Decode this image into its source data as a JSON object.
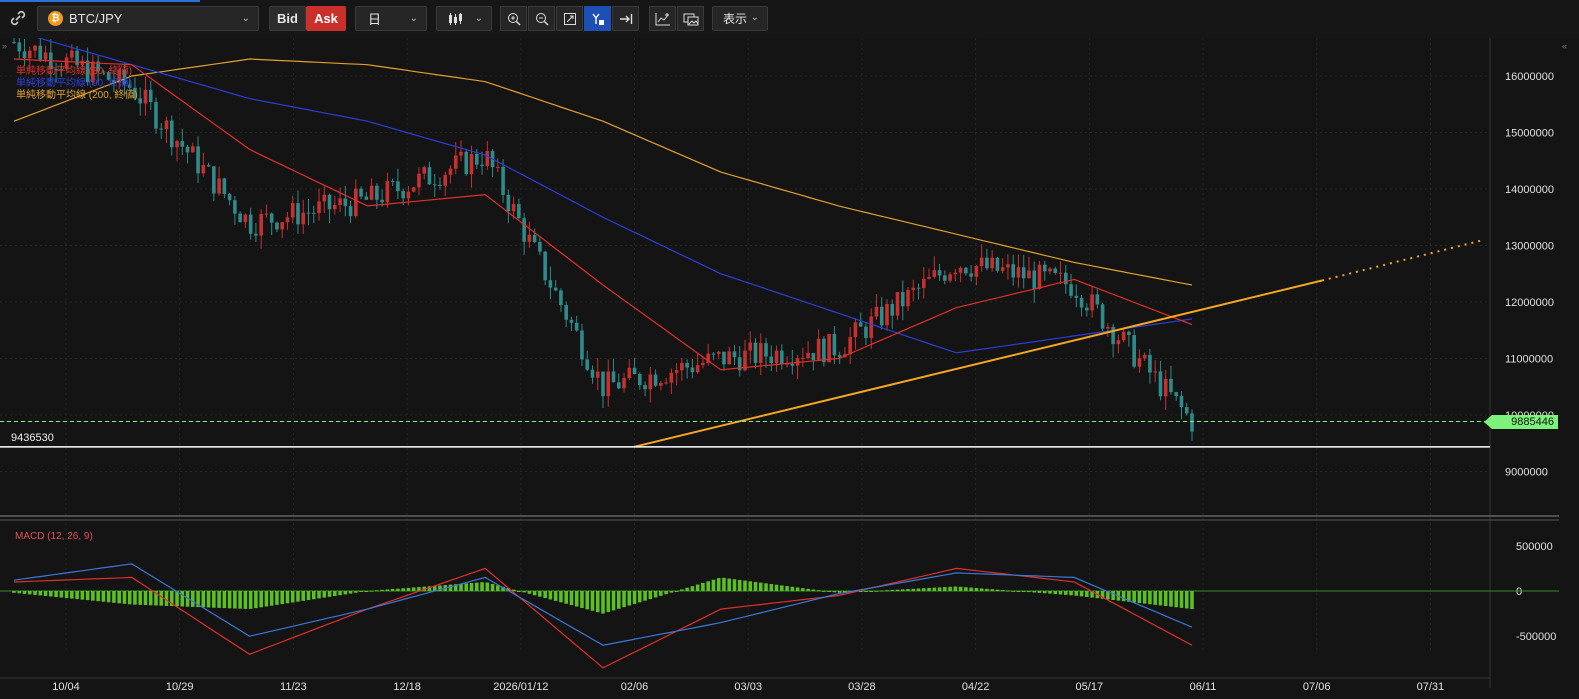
{
  "toolbar": {
    "symbol": "BTC/JPY",
    "coin_glyph": "₿",
    "bid_label": "Bid",
    "ask_label": "Ask",
    "period": "日",
    "display_label": "表示",
    "icons": [
      "link-icon",
      "candlestick-icon",
      "zoom-in-icon",
      "zoom-out-icon",
      "fit-screen-icon",
      "y-axis-lock-icon",
      "scroll-to-latest-icon",
      "indicator-icon",
      "snapshot-icon"
    ]
  },
  "legend": {
    "sma30": "単純移動平均線 (30, 終値)",
    "sma90": "単純移動平均線 (90, 終値)",
    "sma200": "単純移動平均線 (200, 終値)"
  },
  "price_axis": [
    "16000000",
    "15000000",
    "14000000",
    "13000000",
    "12000000",
    "11000000",
    "10000000",
    "9000000"
  ],
  "current_price": "9885446",
  "low_price": "9436530",
  "macd": {
    "label": "MACD (12, 26, 9)",
    "axis": [
      "500000",
      "0",
      "-500000"
    ]
  },
  "dates": [
    "10/04",
    "10/29",
    "11/23",
    "12/18",
    "2026/01/12",
    "02/06",
    "03/03",
    "03/28",
    "04/22",
    "05/17",
    "06/11",
    "07/06",
    "07/31"
  ],
  "colors": {
    "sma30": "#e0302a",
    "sma90": "#2a3fd8",
    "sma200": "#e0a030",
    "up": "#c83030",
    "down": "#2f8a8a",
    "trend": "#f5a623",
    "macd_hist": "#5cc020",
    "current": "#7cf27a"
  },
  "chart_data": {
    "type": "candlestick",
    "pair": "BTC/JPY",
    "x": [
      "10/04",
      "10/29",
      "11/23",
      "12/18",
      "2026/01/12",
      "02/06",
      "03/03",
      "03/28",
      "04/22",
      "05/17",
      "06/11"
    ],
    "close": [
      16600000,
      15800000,
      13400000,
      13800000,
      14600000,
      10500000,
      11000000,
      11200000,
      12700000,
      12300000,
      9885446
    ],
    "sma30": [
      16300000,
      16200000,
      14700000,
      13700000,
      13900000,
      12300000,
      10800000,
      11000000,
      11900000,
      12400000,
      11600000
    ],
    "sma90": [
      16800000,
      16200000,
      15600000,
      15200000,
      14600000,
      13500000,
      12500000,
      11800000,
      11100000,
      11400000,
      11700000
    ],
    "sma200": [
      15200000,
      16000000,
      16300000,
      16200000,
      15900000,
      15200000,
      14300000,
      13700000,
      13200000,
      12700000,
      12300000
    ],
    "macd_line": [
      100000,
      150000,
      -700000,
      -200000,
      250000,
      -850000,
      -200000,
      -50000,
      250000,
      100000,
      -600000
    ],
    "signal_line": [
      120000,
      300000,
      -500000,
      -200000,
      150000,
      -600000,
      -350000,
      -30000,
      200000,
      150000,
      -400000
    ],
    "ylim": [
      8200000,
      16800000
    ],
    "macd_ylim": [
      -750000,
      750000
    ],
    "current_price": 9885446,
    "low_price": 9436530
  }
}
